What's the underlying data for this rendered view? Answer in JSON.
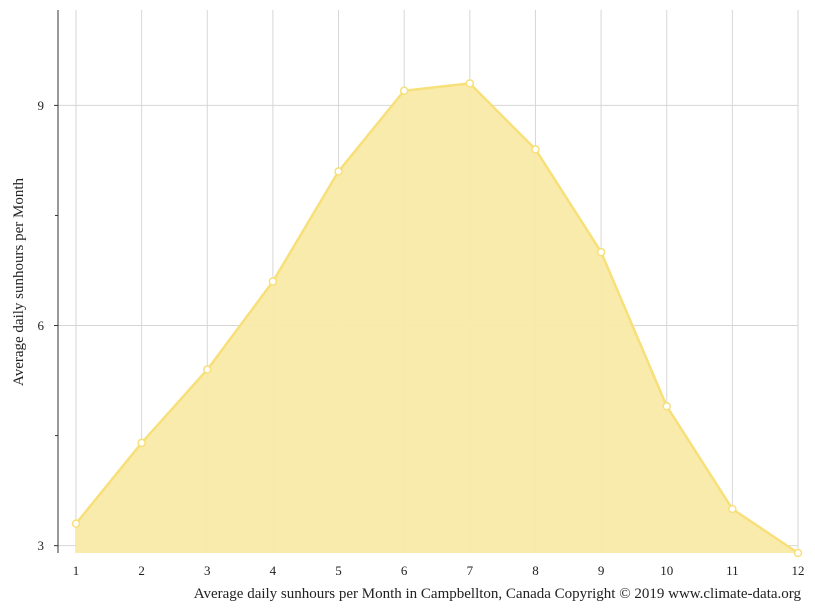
{
  "chart_data": {
    "type": "area",
    "title": "",
    "xlabel": "Average daily sunhours per Month in Campbellton, Canada Copyright © 2019 www.climate-data.org",
    "ylabel": "Average daily sunhours per Month",
    "x": [
      1,
      2,
      3,
      4,
      5,
      6,
      7,
      8,
      9,
      10,
      11,
      12
    ],
    "x_ticks": [
      "1",
      "2",
      "3",
      "4",
      "5",
      "6",
      "7",
      "8",
      "9",
      "10",
      "11",
      "12"
    ],
    "y_ticks": [
      "3",
      "6",
      "9"
    ],
    "xlim": [
      1,
      12
    ],
    "ylim": [
      2.9,
      10.3
    ],
    "grid": true,
    "legend": "none",
    "series": [
      {
        "values": [
          3.3,
          4.4,
          5.4,
          6.6,
          8.1,
          9.2,
          9.3,
          8.4,
          7.0,
          4.9,
          3.5,
          2.9
        ]
      }
    ],
    "colors": {
      "fill": "#f9eaa8",
      "line": "#f7e07a",
      "marker_fill": "#ffffff",
      "grid": "#d6d6d6",
      "axis": "#333333"
    }
  }
}
